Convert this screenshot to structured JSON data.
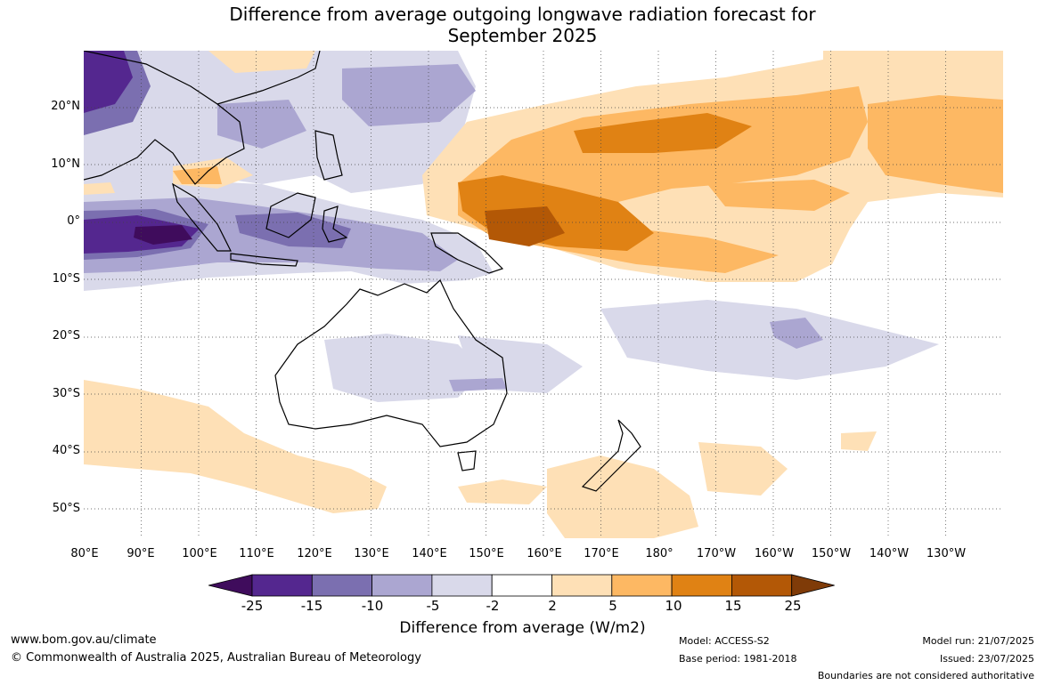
{
  "title_line1": "Difference from average outgoing longwave radiation forecast for",
  "title_line2": "September 2025",
  "lat_labels": [
    "20°N",
    "10°N",
    "0°",
    "10°S",
    "20°S",
    "30°S",
    "40°S",
    "50°S"
  ],
  "lon_labels": [
    "80°E",
    "90°E",
    "100°E",
    "110°E",
    "120°E",
    "130°E",
    "140°E",
    "150°E",
    "160°E",
    "170°E",
    "180°",
    "170°W",
    "160°W",
    "150°W",
    "140°W",
    "130°W"
  ],
  "colorbar": {
    "labels": [
      "-25",
      "-15",
      "-10",
      "-5",
      "-2",
      "2",
      "5",
      "10",
      "15",
      "25"
    ],
    "colors": [
      "#3f0c5c",
      "#54278f",
      "#7b6fb0",
      "#aba6d1",
      "#d9d9ea",
      "#ffffff",
      "#fee0b6",
      "#fdb863",
      "#e08214",
      "#b35806",
      "#7f3b08"
    ],
    "title": "Difference from average (W/m2)"
  },
  "footer": {
    "url": "www.bom.gov.au/climate",
    "copyright": "© Commonwealth of Australia 2025, Australian Bureau of Meteorology",
    "model": "Model: ACCESS-S2",
    "base_period": "Base period: 1981-2018",
    "model_run": "Model run: 21/07/2025",
    "issued": "Issued: 23/07/2025",
    "disclaimer": "Boundaries are not considered authoritative"
  }
}
